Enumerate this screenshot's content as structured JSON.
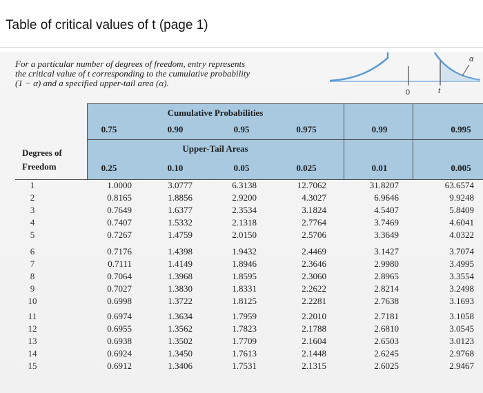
{
  "page_title": "Table of critical values of t (page 1)",
  "description": [
    "For a particular number of degrees of freedom, entry represents",
    "the critical value of t corresponding to the cumulative probability",
    "(1 − α) and a specified upper-tail area (α)."
  ],
  "figure": {
    "zero_label": "0",
    "t_label": "t",
    "alpha_label": "α"
  },
  "table": {
    "cumulative_heading": "Cumulative Probabilities",
    "upper_tail_heading": "Upper-Tail Areas",
    "df_heading": [
      "Degrees of",
      "Freedom"
    ],
    "cumulative_probs": [
      "0.75",
      "0.90",
      "0.95",
      "0.975",
      "0.99",
      "0.995"
    ],
    "upper_tail_areas": [
      "0.25",
      "0.10",
      "0.05",
      "0.025",
      "0.01",
      "0.005"
    ],
    "groups": [
      {
        "df": [
          "1",
          "2",
          "3",
          "4",
          "5"
        ],
        "columns": [
          [
            "1.0000",
            "0.8165",
            "0.7649",
            "0.7407",
            "0.7267"
          ],
          [
            "3.0777",
            "1.8856",
            "1.6377",
            "1.5332",
            "1.4759"
          ],
          [
            "6.3138",
            "2.9200",
            "2.3534",
            "2.1318",
            "2.0150"
          ],
          [
            "12.7062",
            "4.3027",
            "3.1824",
            "2.7764",
            "2.5706"
          ],
          [
            "31.8207",
            "6.9646",
            "4.5407",
            "3.7469",
            "3.3649"
          ],
          [
            "63.6574",
            "9.9248",
            "5.8409",
            "4.6041",
            "4.0322"
          ]
        ]
      },
      {
        "df": [
          "6",
          "7",
          "8",
          "9",
          "10"
        ],
        "columns": [
          [
            "0.7176",
            "0.7111",
            "0.7064",
            "0.7027",
            "0.6998"
          ],
          [
            "1.4398",
            "1.4149",
            "1.3968",
            "1.3830",
            "1.3722"
          ],
          [
            "1.9432",
            "1.8946",
            "1.8595",
            "1.8331",
            "1.8125"
          ],
          [
            "2.4469",
            "2.3646",
            "2.3060",
            "2.2622",
            "2.2281"
          ],
          [
            "3.1427",
            "2.9980",
            "2.8965",
            "2.8214",
            "2.7638"
          ],
          [
            "3.7074",
            "3.4995",
            "3.3554",
            "3.2498",
            "3.1693"
          ]
        ]
      },
      {
        "df": [
          "11",
          "12",
          "13",
          "14",
          "15"
        ],
        "columns": [
          [
            "0.6974",
            "0.6955",
            "0.6938",
            "0.6924",
            "0.6912"
          ],
          [
            "1.3634",
            "1.3562",
            "1.3502",
            "1.3450",
            "1.3406"
          ],
          [
            "1.7959",
            "1.7823",
            "1.7709",
            "1.7613",
            "1.7531"
          ],
          [
            "2.2010",
            "2.1788",
            "2.1604",
            "2.1448",
            "2.1315"
          ],
          [
            "2.7181",
            "2.6810",
            "2.6503",
            "2.6245",
            "2.6025"
          ],
          [
            "3.1058",
            "3.0545",
            "3.0123",
            "2.9768",
            "2.9467"
          ]
        ]
      }
    ]
  },
  "colors": {
    "header_band": "#a8c9e0",
    "curve": "#5b9bd5"
  }
}
